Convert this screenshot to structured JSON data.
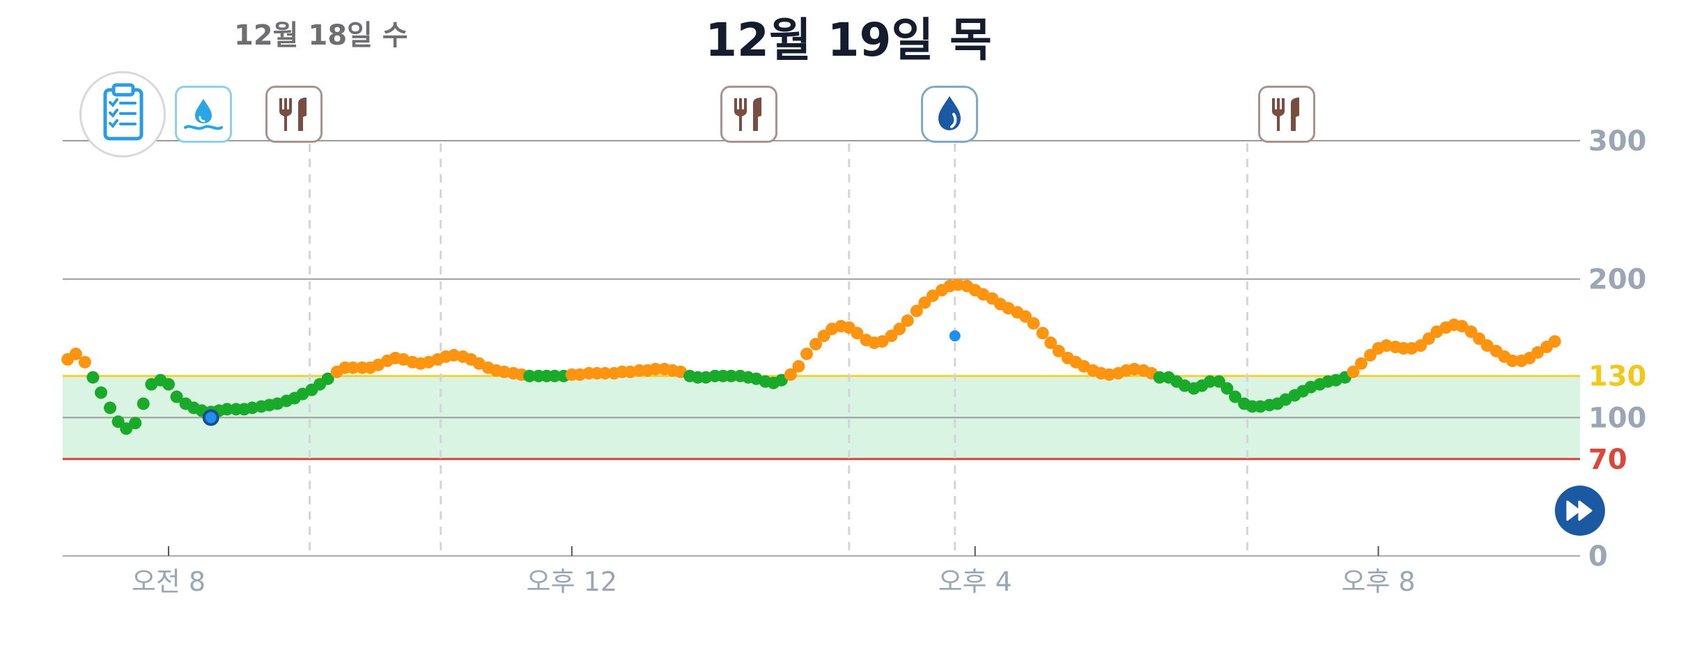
{
  "header": {
    "prev_date": "12월 18일 수",
    "current_date": "12월 19일 목"
  },
  "colors": {
    "in_range": "#1aaa2a",
    "above_range": "#ff9411",
    "target_band": "#d9f4e2",
    "upper_limit_line": "#f5d12b",
    "lower_limit_line": "#d8402f",
    "manual_reading": "#1f8ff0",
    "axis_text": "#9aa6b4",
    "upper_label": "#f2c71b",
    "lower_label": "#d9483c"
  },
  "events": [
    {
      "type": "water-drop-wave",
      "time_hours": 9.4
    },
    {
      "type": "meal",
      "time_hours": 10.7
    },
    {
      "type": "meal",
      "time_hours": 14.75
    },
    {
      "type": "water-drop-dark",
      "time_hours": 15.8
    },
    {
      "type": "meal",
      "time_hours": 18.7
    }
  ],
  "chart_data": {
    "type": "scatter",
    "title": "",
    "xlabel": "",
    "ylabel": "",
    "x_unit": "hours of day",
    "xlim": [
      6.95,
      22.0
    ],
    "ylim": [
      0,
      300
    ],
    "y_ticks": [
      {
        "value": 300,
        "label": "300"
      },
      {
        "value": 200,
        "label": "200"
      },
      {
        "value": 130,
        "label": "130"
      },
      {
        "value": 100,
        "label": "100"
      },
      {
        "value": 70,
        "label": "70"
      },
      {
        "value": 0,
        "label": "0"
      }
    ],
    "x_ticks": [
      {
        "value": 8,
        "label": "오전 8"
      },
      {
        "value": 12,
        "label": "오후 12"
      },
      {
        "value": 16,
        "label": "오후 4"
      },
      {
        "value": 20,
        "label": "오후 8"
      }
    ],
    "target_range": [
      70,
      130
    ],
    "upper_limit": 130,
    "lower_limit": 70,
    "grid": true,
    "legend": "none",
    "series": [
      {
        "points": [
          [
            7.0,
            142
          ],
          [
            7.08,
            146
          ],
          [
            7.17,
            140
          ],
          [
            7.25,
            129
          ],
          [
            7.33,
            118
          ],
          [
            7.42,
            107
          ],
          [
            7.5,
            97
          ],
          [
            7.58,
            92
          ],
          [
            7.67,
            96
          ],
          [
            7.75,
            110
          ],
          [
            7.83,
            124
          ],
          [
            7.92,
            127
          ],
          [
            8.0,
            124
          ],
          [
            8.08,
            115
          ],
          [
            8.17,
            110
          ],
          [
            8.25,
            107
          ],
          [
            8.33,
            105
          ],
          [
            8.42,
            104
          ],
          [
            8.5,
            105
          ],
          [
            8.58,
            106
          ],
          [
            8.67,
            106
          ],
          [
            8.75,
            106
          ],
          [
            8.83,
            107
          ],
          [
            8.92,
            108
          ],
          [
            9.0,
            109
          ],
          [
            9.08,
            110
          ],
          [
            9.17,
            112
          ],
          [
            9.25,
            114
          ],
          [
            9.33,
            117
          ],
          [
            9.42,
            120
          ],
          [
            9.5,
            124
          ],
          [
            9.58,
            128
          ],
          [
            9.67,
            133
          ],
          [
            9.75,
            136
          ],
          [
            9.83,
            136
          ],
          [
            9.92,
            136
          ],
          [
            10.0,
            136
          ],
          [
            10.08,
            138
          ],
          [
            10.17,
            141
          ],
          [
            10.25,
            143
          ],
          [
            10.33,
            142
          ],
          [
            10.42,
            140
          ],
          [
            10.5,
            139
          ],
          [
            10.58,
            140
          ],
          [
            10.67,
            142
          ],
          [
            10.75,
            144
          ],
          [
            10.83,
            145
          ],
          [
            10.92,
            144
          ],
          [
            11.0,
            142
          ],
          [
            11.08,
            139
          ],
          [
            11.17,
            136
          ],
          [
            11.25,
            134
          ],
          [
            11.33,
            133
          ],
          [
            11.42,
            132
          ],
          [
            11.5,
            131
          ],
          [
            11.58,
            130
          ],
          [
            11.67,
            130
          ],
          [
            11.75,
            130
          ],
          [
            11.83,
            130
          ],
          [
            11.92,
            130
          ],
          [
            12.0,
            131
          ],
          [
            12.08,
            131
          ],
          [
            12.17,
            132
          ],
          [
            12.25,
            132
          ],
          [
            12.33,
            132
          ],
          [
            12.42,
            132
          ],
          [
            12.5,
            133
          ],
          [
            12.58,
            133
          ],
          [
            12.67,
            134
          ],
          [
            12.75,
            134
          ],
          [
            12.83,
            135
          ],
          [
            12.92,
            135
          ],
          [
            13.0,
            134
          ],
          [
            13.08,
            133
          ],
          [
            13.17,
            130
          ],
          [
            13.25,
            129
          ],
          [
            13.33,
            129
          ],
          [
            13.42,
            130
          ],
          [
            13.5,
            130
          ],
          [
            13.58,
            130
          ],
          [
            13.67,
            130
          ],
          [
            13.75,
            129
          ],
          [
            13.83,
            128
          ],
          [
            13.92,
            126
          ],
          [
            14.0,
            125
          ],
          [
            14.08,
            127
          ],
          [
            14.17,
            131
          ],
          [
            14.25,
            137
          ],
          [
            14.33,
            146
          ],
          [
            14.42,
            153
          ],
          [
            14.5,
            159
          ],
          [
            14.58,
            164
          ],
          [
            14.67,
            166
          ],
          [
            14.75,
            165
          ],
          [
            14.83,
            161
          ],
          [
            14.92,
            156
          ],
          [
            15.0,
            154
          ],
          [
            15.08,
            155
          ],
          [
            15.17,
            159
          ],
          [
            15.25,
            164
          ],
          [
            15.33,
            170
          ],
          [
            15.42,
            177
          ],
          [
            15.5,
            183
          ],
          [
            15.58,
            188
          ],
          [
            15.67,
            192
          ],
          [
            15.75,
            195
          ],
          [
            15.83,
            196
          ],
          [
            15.92,
            195
          ],
          [
            16.0,
            192
          ],
          [
            16.08,
            189
          ],
          [
            16.17,
            186
          ],
          [
            16.25,
            182
          ],
          [
            16.33,
            179
          ],
          [
            16.42,
            176
          ],
          [
            16.5,
            173
          ],
          [
            16.58,
            168
          ],
          [
            16.67,
            161
          ],
          [
            16.75,
            154
          ],
          [
            16.83,
            148
          ],
          [
            16.92,
            143
          ],
          [
            17.0,
            140
          ],
          [
            17.08,
            137
          ],
          [
            17.17,
            134
          ],
          [
            17.25,
            132
          ],
          [
            17.33,
            131
          ],
          [
            17.42,
            132
          ],
          [
            17.5,
            134
          ],
          [
            17.58,
            135
          ],
          [
            17.67,
            134
          ],
          [
            17.75,
            132
          ],
          [
            17.83,
            129
          ],
          [
            17.92,
            129
          ],
          [
            18.0,
            126
          ],
          [
            18.08,
            123
          ],
          [
            18.17,
            121
          ],
          [
            18.25,
            123
          ],
          [
            18.33,
            126
          ],
          [
            18.42,
            126
          ],
          [
            18.5,
            121
          ],
          [
            18.58,
            115
          ],
          [
            18.67,
            110
          ],
          [
            18.75,
            108
          ],
          [
            18.83,
            108
          ],
          [
            18.92,
            109
          ],
          [
            19.0,
            110
          ],
          [
            19.08,
            113
          ],
          [
            19.17,
            116
          ],
          [
            19.25,
            119
          ],
          [
            19.33,
            122
          ],
          [
            19.42,
            124
          ],
          [
            19.5,
            126
          ],
          [
            19.58,
            127
          ],
          [
            19.67,
            129
          ],
          [
            19.75,
            133
          ],
          [
            19.83,
            139
          ],
          [
            19.92,
            145
          ],
          [
            20.0,
            150
          ],
          [
            20.08,
            152
          ],
          [
            20.17,
            151
          ],
          [
            20.25,
            150
          ],
          [
            20.33,
            150
          ],
          [
            20.42,
            152
          ],
          [
            20.5,
            157
          ],
          [
            20.58,
            162
          ],
          [
            20.67,
            165
          ],
          [
            20.75,
            167
          ],
          [
            20.83,
            166
          ],
          [
            20.92,
            162
          ],
          [
            21.0,
            157
          ],
          [
            21.08,
            152
          ],
          [
            21.17,
            148
          ],
          [
            21.25,
            144
          ],
          [
            21.33,
            141
          ],
          [
            21.42,
            141
          ],
          [
            21.5,
            143
          ],
          [
            21.58,
            147
          ],
          [
            21.67,
            151
          ],
          [
            21.75,
            155
          ]
        ]
      }
    ],
    "manual_readings": [
      {
        "x": 8.42,
        "y": 100,
        "style": "ring"
      },
      {
        "x": 15.8,
        "y": 159,
        "style": "dot"
      }
    ]
  }
}
